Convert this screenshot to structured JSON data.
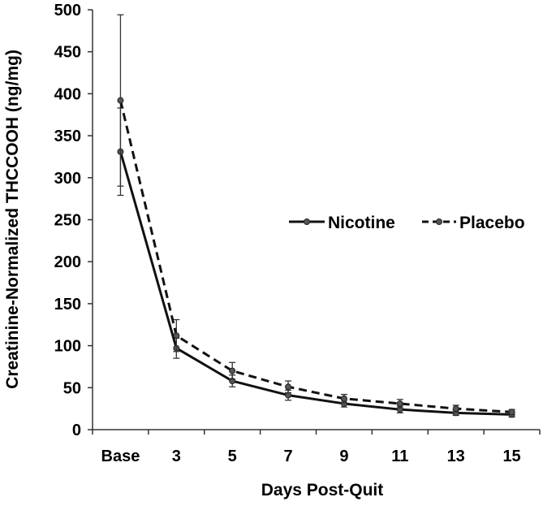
{
  "chart_data": {
    "type": "line",
    "title": "",
    "xlabel": "Days Post-Quit",
    "ylabel": "Creatinine-Normalized THCCOOH (ng/mg)",
    "categories": [
      "Base",
      "3",
      "5",
      "7",
      "9",
      "11",
      "13",
      "15"
    ],
    "ylim": [
      0,
      500
    ],
    "yticks": [
      0,
      50,
      100,
      150,
      200,
      250,
      300,
      350,
      400,
      450,
      500
    ],
    "grid": false,
    "legend_position": "right",
    "series": [
      {
        "name": "Nicotine",
        "line_style": "solid",
        "color": "#111111",
        "values": [
          331,
          97,
          58,
          41,
          31,
          24,
          20,
          18
        ],
        "error": [
          52,
          12,
          7,
          6,
          4,
          4,
          3,
          3
        ]
      },
      {
        "name": "Placebo",
        "line_style": "dashed",
        "color": "#111111",
        "values": [
          392,
          112,
          70,
          51,
          37,
          31,
          25,
          21
        ],
        "error": [
          102,
          19,
          10,
          7,
          5,
          5,
          4,
          3
        ]
      }
    ]
  }
}
